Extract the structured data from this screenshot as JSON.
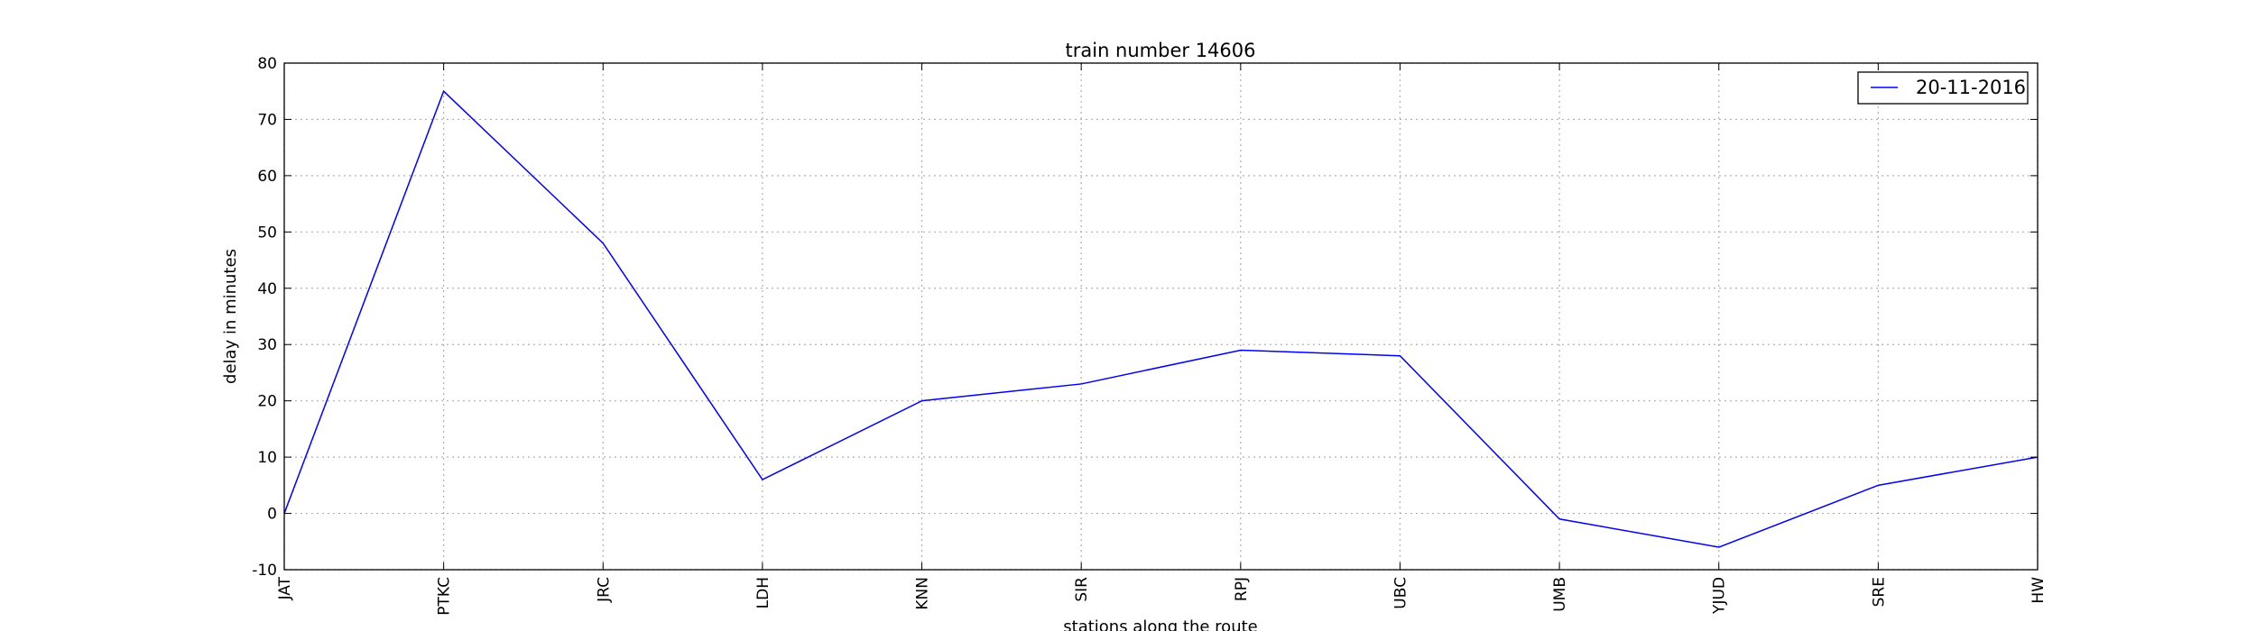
{
  "chart_data": {
    "type": "line",
    "title": "train number 14606",
    "xlabel": "stations along the route",
    "ylabel": "delay in minutes",
    "categories": [
      "JAT",
      "PTKC",
      "JRC",
      "LDH",
      "KNN",
      "SIR",
      "RPJ",
      "UBC",
      "UMB",
      "YJUD",
      "SRE",
      "HW"
    ],
    "series": [
      {
        "name": "20-11-2016",
        "values": [
          0,
          75,
          48,
          6,
          20,
          23,
          29,
          28,
          -1,
          -6,
          5,
          10
        ],
        "color": "#0000ff"
      }
    ],
    "ylim": [
      -10,
      80
    ],
    "yticks": [
      -10,
      0,
      10,
      20,
      30,
      40,
      50,
      60,
      70,
      80
    ],
    "grid": true,
    "legend_position": "top-right"
  }
}
